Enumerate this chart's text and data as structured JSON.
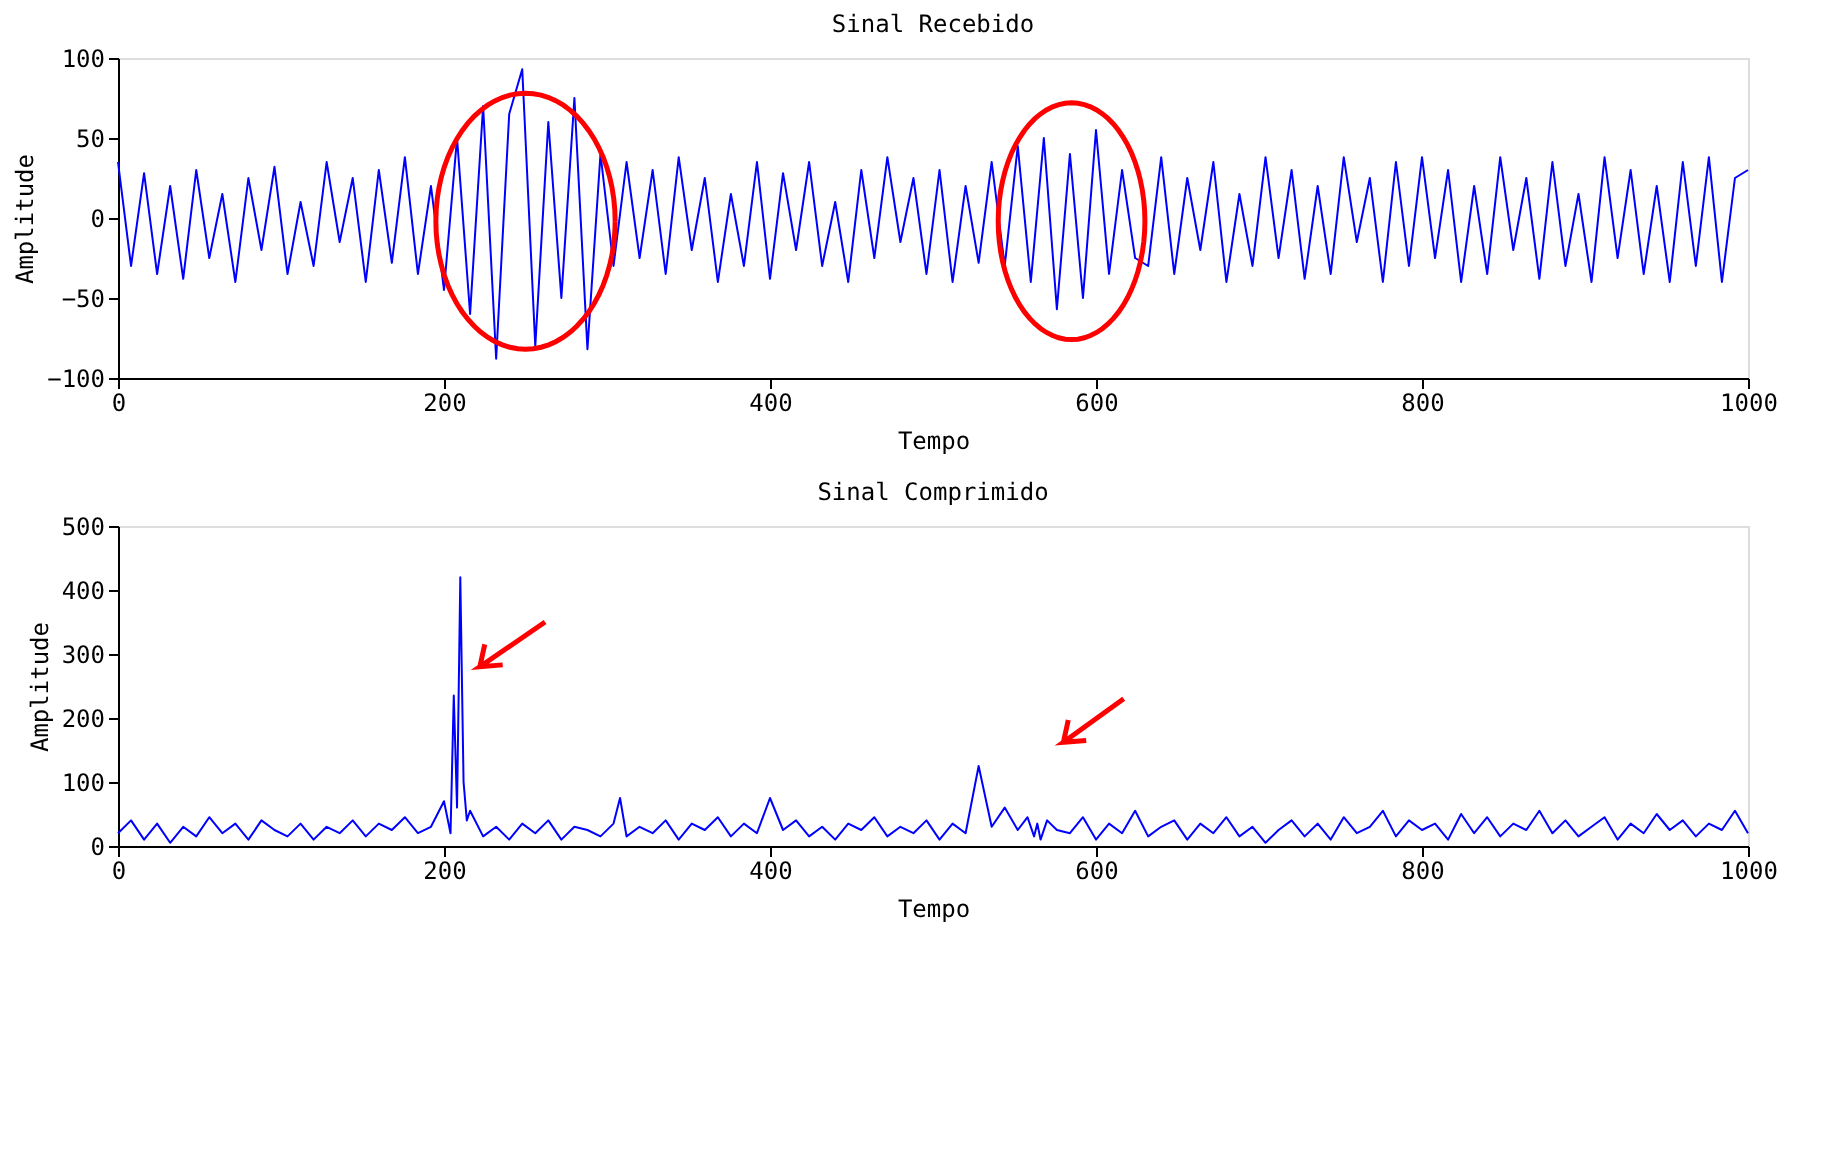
{
  "chart_data": [
    {
      "type": "line",
      "title": "Sinal Recebido",
      "xlabel": "Tempo",
      "ylabel": "Amplitude",
      "xlim": [
        0,
        1000
      ],
      "ylim": [
        -100,
        100
      ],
      "xticks": [
        0,
        200,
        400,
        600,
        800,
        1000
      ],
      "yticks": [
        -100,
        -50,
        0,
        50,
        100
      ],
      "grid": false,
      "series": [
        {
          "color": "#0000ff",
          "x": [
            0,
            8,
            16,
            24,
            32,
            40,
            48,
            56,
            64,
            72,
            80,
            88,
            96,
            104,
            112,
            120,
            128,
            136,
            144,
            152,
            160,
            168,
            176,
            184,
            192,
            200,
            208,
            216,
            224,
            232,
            240,
            248,
            256,
            264,
            272,
            280,
            288,
            296,
            304,
            312,
            320,
            328,
            336,
            344,
            352,
            360,
            368,
            376,
            384,
            392,
            400,
            408,
            416,
            424,
            432,
            440,
            448,
            456,
            464,
            472,
            480,
            488,
            496,
            504,
            512,
            520,
            528,
            536,
            544,
            552,
            560,
            568,
            576,
            584,
            592,
            600,
            608,
            616,
            624,
            632,
            640,
            648,
            656,
            664,
            672,
            680,
            688,
            696,
            704,
            712,
            720,
            728,
            736,
            744,
            752,
            760,
            768,
            776,
            784,
            792,
            800,
            808,
            816,
            824,
            832,
            840,
            848,
            856,
            864,
            872,
            880,
            888,
            896,
            904,
            912,
            920,
            928,
            936,
            944,
            952,
            960,
            968,
            976,
            984,
            992,
            1000
          ],
          "values": [
            35,
            -30,
            28,
            -35,
            20,
            -38,
            30,
            -25,
            15,
            -40,
            25,
            -20,
            32,
            -35,
            10,
            -30,
            35,
            -15,
            25,
            -40,
            30,
            -28,
            38,
            -35,
            20,
            -45,
            50,
            -60,
            70,
            -88,
            65,
            93,
            -80,
            60,
            -50,
            75,
            -82,
            40,
            -30,
            35,
            -25,
            30,
            -35,
            38,
            -20,
            25,
            -40,
            15,
            -30,
            35,
            -38,
            28,
            -20,
            35,
            -30,
            10,
            -40,
            30,
            -25,
            38,
            -15,
            25,
            -35,
            30,
            -40,
            20,
            -28,
            35,
            -30,
            45,
            -40,
            50,
            -57,
            40,
            -50,
            55,
            -35,
            30,
            -25,
            -30,
            38,
            -35,
            25,
            -20,
            35,
            -40,
            15,
            -30,
            38,
            -25,
            30,
            -38,
            20,
            -35,
            38,
            -15,
            25,
            -40,
            35,
            -30,
            38,
            -25,
            30,
            -40,
            20,
            -35,
            38,
            -20,
            25,
            -38,
            35,
            -30,
            15,
            -40,
            38,
            -25,
            30,
            -35,
            20,
            -40,
            35,
            -30,
            38,
            -40,
            25,
            30
          ]
        }
      ]
    },
    {
      "type": "line",
      "title": "Sinal Comprimido",
      "xlabel": "Tempo",
      "ylabel": "Amplitude",
      "xlim": [
        0,
        1000
      ],
      "ylim": [
        0,
        500
      ],
      "xticks": [
        0,
        200,
        400,
        600,
        800,
        1000
      ],
      "yticks": [
        0,
        100,
        200,
        300,
        400,
        500
      ],
      "grid": false,
      "series": [
        {
          "color": "#0000ff",
          "x": [
            0,
            8,
            16,
            24,
            32,
            40,
            48,
            56,
            64,
            72,
            80,
            88,
            96,
            104,
            112,
            120,
            128,
            136,
            144,
            152,
            160,
            168,
            176,
            184,
            192,
            200,
            204,
            206,
            208,
            210,
            212,
            214,
            216,
            224,
            232,
            240,
            248,
            256,
            264,
            272,
            280,
            288,
            296,
            304,
            308,
            312,
            320,
            328,
            336,
            344,
            352,
            360,
            368,
            376,
            384,
            392,
            400,
            408,
            416,
            424,
            432,
            440,
            448,
            456,
            464,
            472,
            480,
            488,
            496,
            504,
            512,
            520,
            528,
            536,
            544,
            552,
            558,
            562,
            564,
            566,
            570,
            576,
            584,
            592,
            600,
            608,
            616,
            624,
            632,
            640,
            648,
            656,
            664,
            672,
            680,
            688,
            696,
            704,
            712,
            720,
            728,
            736,
            744,
            752,
            760,
            768,
            776,
            784,
            792,
            800,
            808,
            816,
            824,
            832,
            840,
            848,
            856,
            864,
            872,
            880,
            888,
            896,
            904,
            912,
            920,
            928,
            936,
            944,
            952,
            960,
            968,
            976,
            984,
            992,
            1000
          ],
          "values": [
            20,
            40,
            10,
            35,
            5,
            30,
            15,
            45,
            20,
            35,
            10,
            40,
            25,
            15,
            35,
            10,
            30,
            20,
            40,
            15,
            35,
            25,
            45,
            20,
            30,
            70,
            20,
            235,
            60,
            420,
            100,
            40,
            55,
            15,
            30,
            10,
            35,
            20,
            40,
            10,
            30,
            25,
            15,
            35,
            75,
            15,
            30,
            20,
            40,
            10,
            35,
            25,
            45,
            15,
            35,
            20,
            75,
            25,
            40,
            15,
            30,
            10,
            35,
            25,
            45,
            15,
            30,
            20,
            40,
            10,
            35,
            20,
            125,
            30,
            60,
            25,
            45,
            15,
            35,
            10,
            40,
            25,
            20,
            45,
            10,
            35,
            20,
            55,
            15,
            30,
            40,
            10,
            35,
            20,
            45,
            15,
            30,
            5,
            25,
            40,
            15,
            35,
            10,
            45,
            20,
            30,
            55,
            15,
            40,
            25,
            35,
            10,
            50,
            20,
            45,
            15,
            35,
            25,
            55,
            20,
            40,
            15,
            30,
            45,
            10,
            35,
            20,
            50,
            25,
            40,
            15,
            35,
            25,
            55,
            20
          ]
        }
      ]
    }
  ]
}
